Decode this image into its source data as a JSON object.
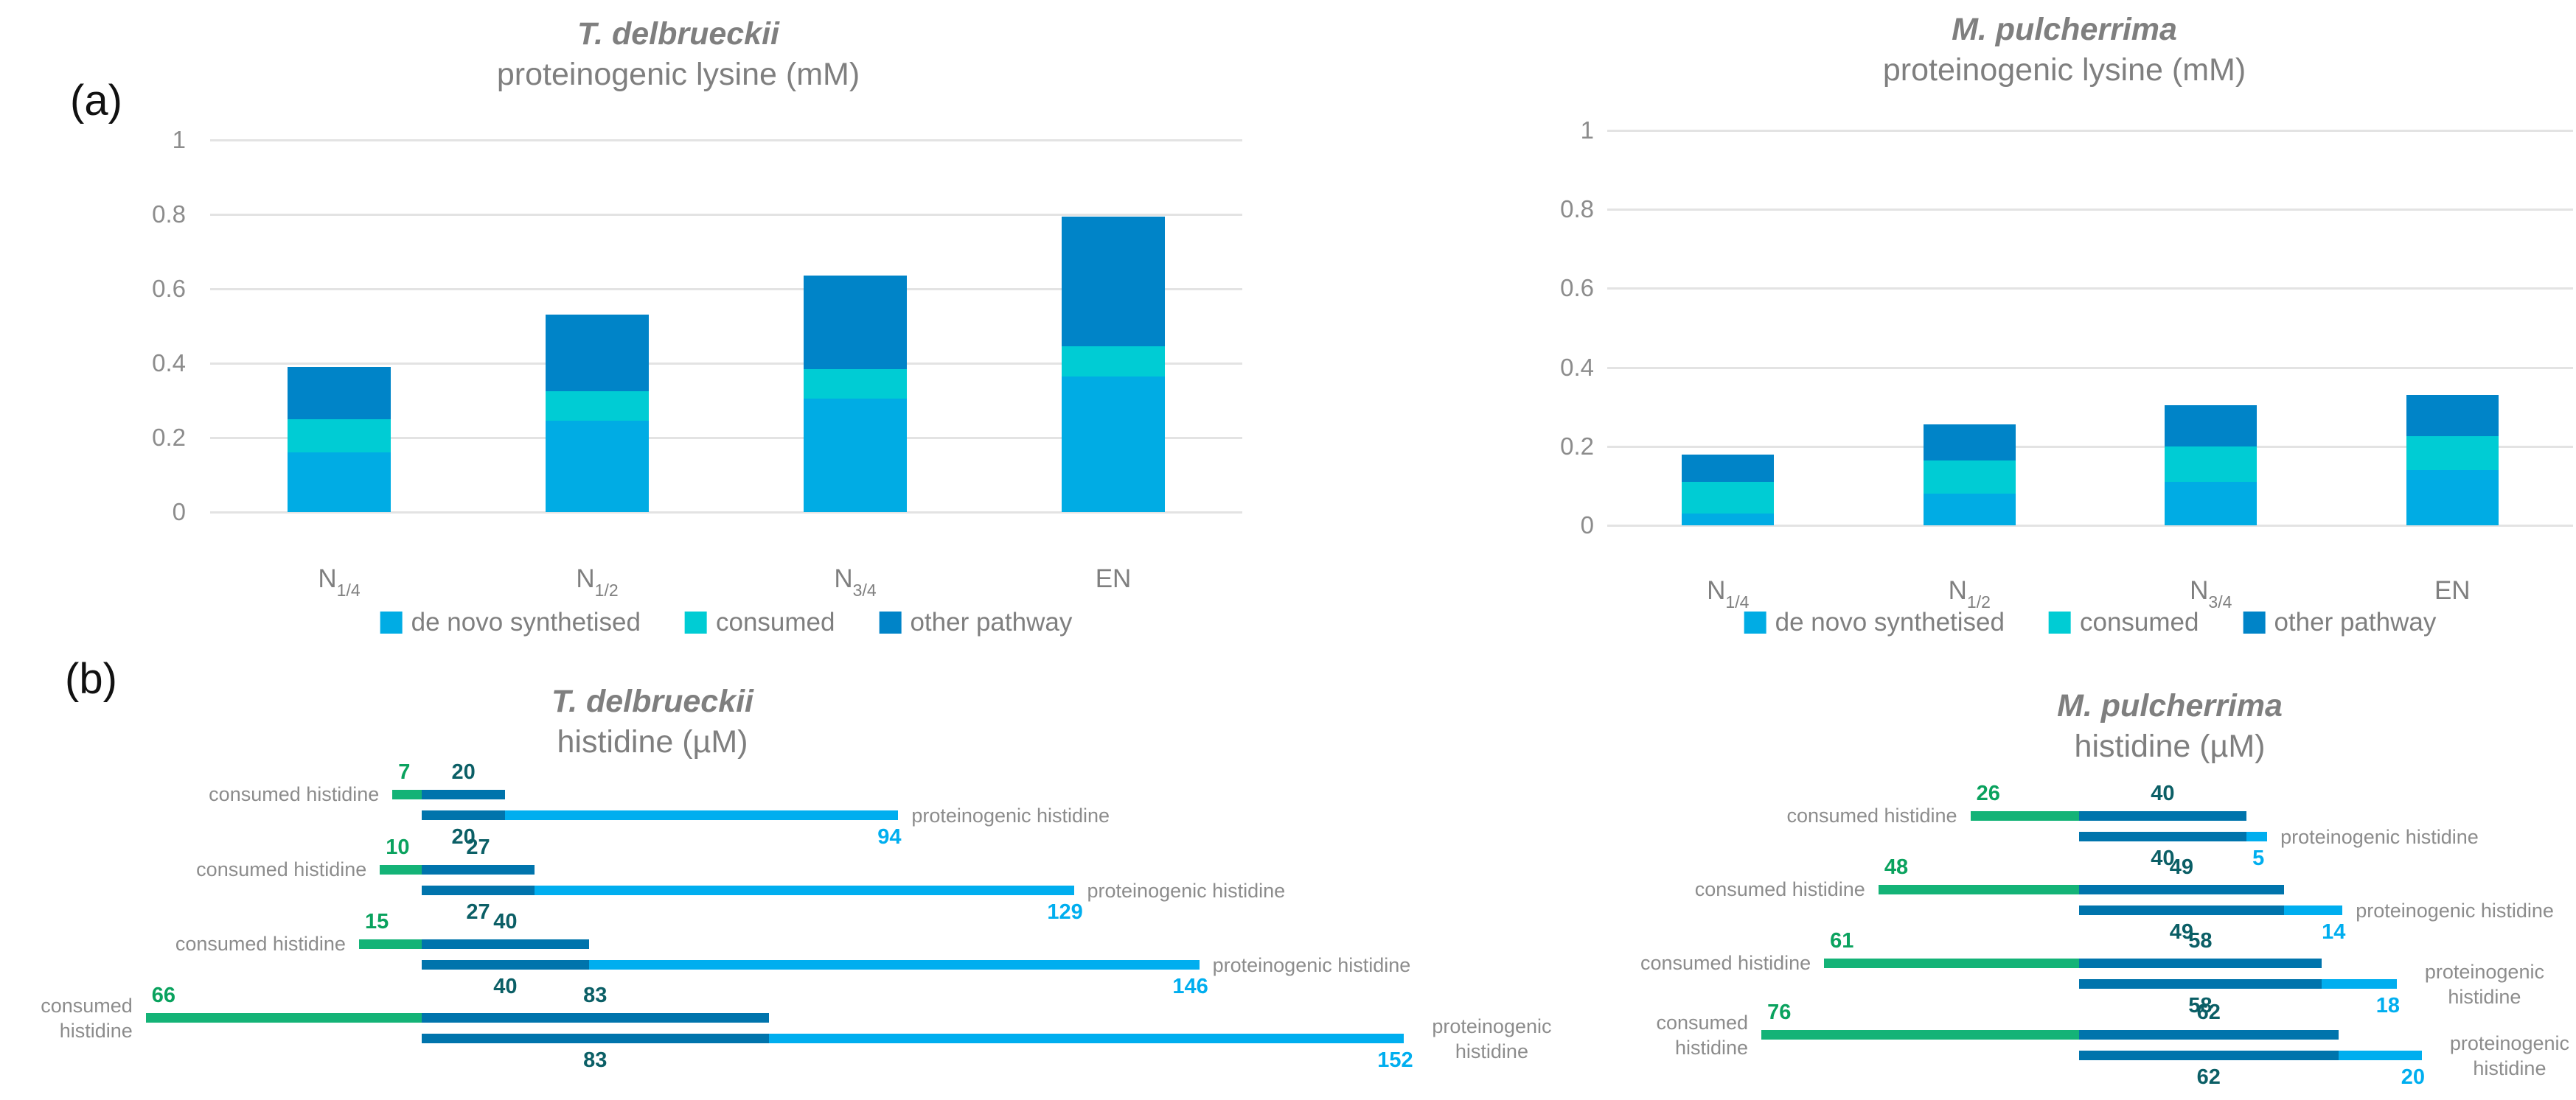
{
  "panel_labels": {
    "a": "(a)",
    "b": "(b)"
  },
  "colors": {
    "de_novo": "#00ACE4",
    "consumed_cyan": "#00CCD4",
    "other_pathway": "#0084C8",
    "consumed_green": "#14B377",
    "dark_blue_bar": "#0074AC",
    "light_blue_bar": "#00AEEF",
    "green_number": "#0AA25E",
    "teal_number": "#0B5F66",
    "light_blue_number": "#00AEEF",
    "gray_text": "#7F7F7F",
    "gridline": "#E3E3E3"
  },
  "chart_data": [
    {
      "id": "td_lysine",
      "type": "bar",
      "stacked": true,
      "title_species": "T. delbrueckii",
      "title_rest": "proteinogenic lysine (mM)",
      "categories": [
        {
          "base": "N",
          "sub": "1/4"
        },
        {
          "base": "N",
          "sub": "1/2"
        },
        {
          "base": "N",
          "sub": "3/4"
        },
        {
          "base": "EN",
          "sub": ""
        }
      ],
      "series": [
        {
          "name": "de novo synthetised",
          "color_key": "de_novo",
          "values": [
            0.16,
            0.245,
            0.305,
            0.365
          ]
        },
        {
          "name": "consumed",
          "color_key": "consumed_cyan",
          "values": [
            0.09,
            0.08,
            0.08,
            0.08
          ]
        },
        {
          "name": "other pathway",
          "color_key": "other_pathway",
          "values": [
            0.14,
            0.205,
            0.25,
            0.35
          ]
        }
      ],
      "ylim": [
        0,
        1
      ],
      "yticks": [
        "1",
        "0.8",
        "0.6",
        "0.4",
        "0.2",
        "0"
      ],
      "grid": true,
      "legend_position": "bottom"
    },
    {
      "id": "mp_lysine",
      "type": "bar",
      "stacked": true,
      "title_species": "M. pulcherrima",
      "title_rest": "proteinogenic lysine (mM)",
      "categories": [
        {
          "base": "N",
          "sub": "1/4"
        },
        {
          "base": "N",
          "sub": "1/2"
        },
        {
          "base": "N",
          "sub": "3/4"
        },
        {
          "base": "EN",
          "sub": ""
        }
      ],
      "series": [
        {
          "name": "de novo synthetised",
          "color_key": "de_novo",
          "values": [
            0.03,
            0.08,
            0.11,
            0.14
          ]
        },
        {
          "name": "consumed",
          "color_key": "consumed_cyan",
          "values": [
            0.08,
            0.085,
            0.09,
            0.085
          ]
        },
        {
          "name": "other pathway",
          "color_key": "other_pathway",
          "values": [
            0.07,
            0.09,
            0.105,
            0.105
          ]
        }
      ],
      "ylim": [
        0,
        1
      ],
      "yticks": [
        "1",
        "0.8",
        "0.6",
        "0.4",
        "0.2",
        "0"
      ],
      "grid": true,
      "legend_position": "bottom"
    },
    {
      "id": "td_histidine",
      "type": "paired-bar",
      "title_species": "T. delbrueckii",
      "title_rest": "histidine (µM)",
      "left_label": "consumed histidine",
      "right_label": "proteinogenic histidine",
      "rows": [
        {
          "consumed_value": 7,
          "initial_value": 20,
          "final_value": 94
        },
        {
          "consumed_value": 10,
          "initial_value": 27,
          "final_value": 129
        },
        {
          "consumed_value": 15,
          "initial_value": 40,
          "final_value": 146
        },
        {
          "consumed_value": 66,
          "initial_value": 83,
          "final_value": 152
        }
      ]
    },
    {
      "id": "mp_histidine",
      "type": "paired-bar",
      "title_species": "M. pulcherrima",
      "title_rest": "histidine (µM)",
      "left_label": "consumed histidine",
      "right_label": "proteinogenic histidine",
      "rows": [
        {
          "consumed_value": 26,
          "initial_value": 40,
          "final_value": 5
        },
        {
          "consumed_value": 48,
          "initial_value": 49,
          "final_value": 14
        },
        {
          "consumed_value": 61,
          "initial_value": 58,
          "final_value": 18
        },
        {
          "consumed_value": 76,
          "initial_value": 62,
          "final_value": 20
        }
      ]
    }
  ]
}
